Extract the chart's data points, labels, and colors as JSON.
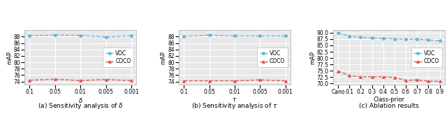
{
  "plot1": {
    "title": "(a) Sensitivity analysis of $\\delta$",
    "xlabel": "$\\delta$",
    "ylabel": "mAP",
    "xtick_labels": [
      "0.1",
      "0.05",
      "0.01",
      "0.005",
      "0.001"
    ],
    "voc_values": [
      88.3,
      88.5,
      88.4,
      87.9,
      88.3
    ],
    "coco_values": [
      74.4,
      74.7,
      74.3,
      74.6,
      74.3
    ],
    "ylim": [
      73.0,
      90.0
    ],
    "yticks": [
      74,
      76,
      78,
      80,
      82,
      84,
      86,
      88
    ]
  },
  "plot2": {
    "title": "(b) Sensitivity analysis of $\\tau$",
    "xlabel": "$\\tau$",
    "ylabel": "mAP",
    "xtick_labels": [
      "0.1",
      "0.05",
      "0.01",
      "0.005",
      "0.001"
    ],
    "voc_values": [
      88.1,
      88.5,
      88.2,
      88.2,
      88.2
    ],
    "coco_values": [
      74.2,
      74.2,
      74.2,
      74.5,
      74.2
    ],
    "ylim": [
      73.0,
      90.0
    ],
    "yticks": [
      74,
      76,
      78,
      80,
      82,
      84,
      86,
      88
    ]
  },
  "plot3": {
    "title": "(c) Ablation results",
    "xlabel": "Class-prior",
    "ylabel": "mAP",
    "xtick_labels": [
      "Cano",
      "0.1",
      "0.2",
      "0.3",
      "0.4",
      "0.5",
      "0.6",
      "0.7",
      "0.8",
      "0.9"
    ],
    "voc_values": [
      90.0,
      88.7,
      88.2,
      87.9,
      87.7,
      87.6,
      87.4,
      87.4,
      87.2,
      86.8
    ],
    "coco_values": [
      74.9,
      73.1,
      72.6,
      72.6,
      72.6,
      72.4,
      71.2,
      71.4,
      70.9,
      70.8
    ],
    "ylim": [
      69.5,
      91.0
    ],
    "yticks": [
      70.0,
      72.5,
      75.0,
      77.5,
      80.0,
      82.5,
      85.0,
      87.5,
      90.0
    ]
  },
  "voc_color": "#6ab4d8",
  "coco_color": "#e05555",
  "bg_color": "#e8e8e8",
  "grid_color": "white",
  "title_fontsize": 6.5,
  "label_fontsize": 6,
  "tick_fontsize": 5.5,
  "legend_fontsize": 5.5
}
